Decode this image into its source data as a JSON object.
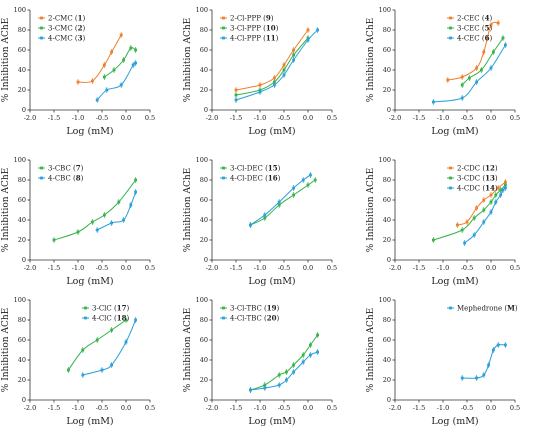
{
  "chart_data": [
    {
      "type": "scatter",
      "xlabel": "Log (mM)",
      "ylabel": "% Inhibition  AChE",
      "xlim": [
        -2.0,
        0.5
      ],
      "ylim": [
        0,
        100
      ],
      "xticks": [
        "-2.0",
        "-1.5",
        "-1.0",
        "-0.5",
        "0.0",
        "0.5"
      ],
      "yticks": [
        "0",
        "20",
        "40",
        "60",
        "80",
        "100"
      ],
      "legend": "top-left",
      "series": [
        {
          "name": "2-CMC",
          "id": "1",
          "color": "#f07e2a",
          "x": [
            -1.0,
            -0.7,
            -0.45,
            -0.3,
            -0.1
          ],
          "y": [
            28,
            29,
            45,
            58,
            75
          ]
        },
        {
          "name": "3-CMC",
          "id": "2",
          "color": "#35b34a",
          "x": [
            -0.45,
            -0.25,
            -0.05,
            0.1,
            0.2
          ],
          "y": [
            33,
            40,
            50,
            62,
            60
          ]
        },
        {
          "name": "4-CMC",
          "id": "3",
          "color": "#2a9fd8",
          "x": [
            -0.6,
            -0.4,
            -0.1,
            0.15,
            0.2
          ],
          "y": [
            10,
            20,
            25,
            45,
            47
          ]
        }
      ]
    },
    {
      "type": "scatter",
      "xlabel": "Log (mM)",
      "ylabel": "% Inhibition  AChE",
      "xlim": [
        -2.0,
        0.5
      ],
      "ylim": [
        0,
        100
      ],
      "xticks": [
        "-2.0",
        "-1.5",
        "-1.0",
        "-0.5",
        "0.0",
        "0.5"
      ],
      "yticks": [
        "0",
        "20",
        "40",
        "60",
        "80",
        "100"
      ],
      "legend": "top-left",
      "series": [
        {
          "name": "2-Cl-PPP",
          "id": "9",
          "color": "#f07e2a",
          "x": [
            -1.5,
            -1.0,
            -0.7,
            -0.5,
            -0.3,
            0.0
          ],
          "y": [
            20,
            25,
            32,
            45,
            60,
            80
          ]
        },
        {
          "name": "3-Cl-PPP",
          "id": "10",
          "color": "#35b34a",
          "x": [
            -1.5,
            -1.0,
            -0.7,
            -0.5,
            -0.3,
            0.0
          ],
          "y": [
            15,
            20,
            28,
            40,
            55,
            72
          ]
        },
        {
          "name": "4-Cl-PPP",
          "id": "11",
          "color": "#2a9fd8",
          "x": [
            -1.5,
            -1.0,
            -0.7,
            -0.5,
            -0.3,
            0.0,
            0.2
          ],
          "y": [
            10,
            18,
            25,
            35,
            50,
            70,
            80
          ]
        }
      ]
    },
    {
      "type": "scatter",
      "xlabel": "Log (mM)",
      "ylabel": "% Inhibition  AChE",
      "xlim": [
        -2.0,
        0.5
      ],
      "ylim": [
        0,
        100
      ],
      "xticks": [
        "-2.0",
        "-1.5",
        "-1.0",
        "-0.5",
        "0.0",
        "0.5"
      ],
      "yticks": [
        "0",
        "20",
        "40",
        "60",
        "80",
        "100"
      ],
      "legend": "top-right",
      "series": [
        {
          "name": "2-CEC",
          "id": "4",
          "color": "#f07e2a",
          "x": [
            -0.9,
            -0.6,
            -0.3,
            -0.15,
            0.0,
            0.15
          ],
          "y": [
            30,
            33,
            42,
            58,
            85,
            87
          ]
        },
        {
          "name": "3-CEC",
          "id": "5",
          "color": "#35b34a",
          "x": [
            -0.6,
            -0.45,
            -0.2,
            0.05,
            0.25
          ],
          "y": [
            25,
            32,
            40,
            58,
            72
          ]
        },
        {
          "name": "4-CEC",
          "id": "6",
          "color": "#2a9fd8",
          "x": [
            -1.2,
            -0.6,
            -0.3,
            0.0,
            0.3
          ],
          "y": [
            8,
            12,
            28,
            42,
            65
          ]
        }
      ]
    },
    {
      "type": "scatter",
      "xlabel": "Log (mM)",
      "ylabel": "% Inhibition  AChE",
      "xlim": [
        -2.0,
        0.5
      ],
      "ylim": [
        0,
        100
      ],
      "xticks": [
        "-2.0",
        "-1.5",
        "-1.0",
        "-0.5",
        "0.0",
        "0.5"
      ],
      "yticks": [
        "0",
        "20",
        "40",
        "60",
        "80",
        "100"
      ],
      "legend": "top-left",
      "series": [
        {
          "name": "3-CBC",
          "id": "7",
          "color": "#35b34a",
          "x": [
            -1.5,
            -1.0,
            -0.7,
            -0.45,
            -0.15,
            0.2
          ],
          "y": [
            20,
            28,
            38,
            45,
            58,
            80
          ]
        },
        {
          "name": "4-CBC",
          "id": "8",
          "color": "#2a9fd8",
          "x": [
            -0.6,
            -0.3,
            -0.05,
            0.1,
            0.2
          ],
          "y": [
            30,
            37,
            40,
            55,
            68
          ]
        }
      ]
    },
    {
      "type": "scatter",
      "xlabel": "Log (mM)",
      "ylabel": "% Inhibition  AChE",
      "xlim": [
        -2.0,
        0.5
      ],
      "ylim": [
        0,
        100
      ],
      "xticks": [
        "-2.0",
        "-1.5",
        "-1.0",
        "-0.5",
        "0.0",
        "0.5"
      ],
      "yticks": [
        "0",
        "20",
        "40",
        "60",
        "80",
        "100"
      ],
      "legend": "top-left",
      "series": [
        {
          "name": "3-Cl-DEC",
          "id": "15",
          "color": "#35b34a",
          "x": [
            -1.2,
            -0.9,
            -0.6,
            -0.3,
            0.0,
            0.15
          ],
          "y": [
            35,
            42,
            55,
            65,
            75,
            80
          ]
        },
        {
          "name": "4-Cl-DEC",
          "id": "16",
          "color": "#2a9fd8",
          "x": [
            -1.2,
            -0.9,
            -0.6,
            -0.3,
            -0.1,
            0.05
          ],
          "y": [
            35,
            45,
            58,
            72,
            80,
            85
          ]
        }
      ]
    },
    {
      "type": "scatter",
      "xlabel": "Log (mM)",
      "ylabel": "% Inhibition  AChE",
      "xlim": [
        -2.0,
        0.5
      ],
      "ylim": [
        0,
        100
      ],
      "xticks": [
        "-2.0",
        "-1.5",
        "-1.0",
        "-0.5",
        "0.0",
        "0.5"
      ],
      "yticks": [
        "0",
        "20",
        "40",
        "60",
        "80",
        "100"
      ],
      "legend": "top-right",
      "series": [
        {
          "name": "2-CDC",
          "id": "12",
          "color": "#f07e2a",
          "x": [
            -0.7,
            -0.5,
            -0.3,
            -0.15,
            0.0,
            0.15,
            0.3
          ],
          "y": [
            35,
            38,
            52,
            60,
            65,
            72,
            78
          ]
        },
        {
          "name": "3-CDC",
          "id": "13",
          "color": "#35b34a",
          "x": [
            -1.2,
            -0.6,
            -0.35,
            -0.15,
            0.0,
            0.1,
            0.2,
            0.3
          ],
          "y": [
            20,
            30,
            42,
            50,
            58,
            65,
            70,
            75
          ]
        },
        {
          "name": "4-CDC",
          "id": "14",
          "color": "#2a9fd8",
          "x": [
            -0.55,
            -0.35,
            -0.15,
            0.0,
            0.1,
            0.2,
            0.25,
            0.3
          ],
          "y": [
            17,
            25,
            38,
            48,
            58,
            65,
            70,
            72
          ]
        }
      ]
    },
    {
      "type": "scatter",
      "xlabel": "Log (mM)",
      "ylabel": "% Inhibition  AChE",
      "xlim": [
        -2.0,
        0.5
      ],
      "ylim": [
        0,
        100
      ],
      "xticks": [
        "-2.0",
        "-1.5",
        "-1.0",
        "-0.5",
        "0.0",
        "0.5"
      ],
      "yticks": [
        "0",
        "20",
        "40",
        "60",
        "80",
        "100"
      ],
      "legend": "top-right",
      "series": [
        {
          "name": "3-ClC",
          "id": "17",
          "color": "#35b34a",
          "x": [
            -1.2,
            -0.9,
            -0.6,
            -0.3,
            0.0
          ],
          "y": [
            30,
            50,
            60,
            70,
            80
          ]
        },
        {
          "name": "4-ClC",
          "id": "18",
          "color": "#2a9fd8",
          "x": [
            -0.9,
            -0.5,
            -0.3,
            0.0,
            0.2
          ],
          "y": [
            25,
            30,
            35,
            58,
            80
          ]
        }
      ]
    },
    {
      "type": "scatter",
      "xlabel": "Log (mM)",
      "ylabel": "% Inhibition  AChE",
      "xlim": [
        -2.0,
        0.5
      ],
      "ylim": [
        0,
        100
      ],
      "xticks": [
        "-2.0",
        "-1.5",
        "-1.0",
        "-0.5",
        "0.0",
        "0.5"
      ],
      "yticks": [
        "0",
        "20",
        "40",
        "60",
        "80",
        "100"
      ],
      "legend": "top-left",
      "series": [
        {
          "name": "3-Cl-TBC",
          "id": "19",
          "color": "#35b34a",
          "x": [
            -1.2,
            -0.9,
            -0.6,
            -0.45,
            -0.3,
            -0.1,
            0.05,
            0.2
          ],
          "y": [
            10,
            15,
            25,
            28,
            35,
            45,
            55,
            65
          ]
        },
        {
          "name": "4-Cl-TBC",
          "id": "20",
          "color": "#2a9fd8",
          "x": [
            -1.2,
            -0.9,
            -0.6,
            -0.45,
            -0.3,
            -0.1,
            0.05,
            0.2
          ],
          "y": [
            10,
            12,
            15,
            20,
            28,
            38,
            45,
            48
          ]
        }
      ]
    },
    {
      "type": "scatter",
      "xlabel": "Log (mM)",
      "ylabel": "% Inhibition  AChE",
      "xlim": [
        -2.0,
        0.5
      ],
      "ylim": [
        0,
        100
      ],
      "xticks": [
        "-2.0",
        "-1.5",
        "-1.0",
        "-0.5",
        "0.0",
        "0.5"
      ],
      "yticks": [
        "0",
        "20",
        "40",
        "60",
        "80",
        "100"
      ],
      "legend": "top-right",
      "series": [
        {
          "name": "Mephedrone",
          "id": "M",
          "color": "#2a9fd8",
          "x": [
            -0.6,
            -0.3,
            -0.15,
            -0.05,
            0.05,
            0.15,
            0.3
          ],
          "y": [
            22,
            22,
            25,
            35,
            50,
            55,
            55
          ]
        }
      ]
    }
  ]
}
